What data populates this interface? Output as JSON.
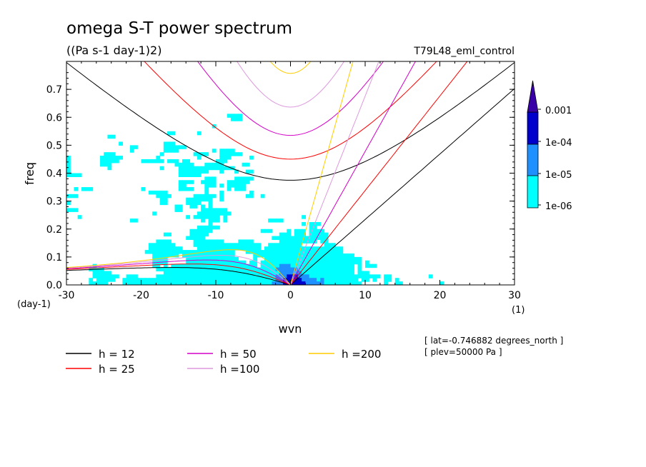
{
  "header": {
    "title": "omega S-T power spectrum",
    "units": "((Pa s-1 day-1)2)",
    "experiment": "T79L48_eml_control"
  },
  "chart_data": {
    "type": "heatmap",
    "title": "omega S-T power spectrum",
    "subtitle": "((Pa s-1 day-1)2)",
    "xlabel": "wvn",
    "ylabel": "freq",
    "x_units": "(1)",
    "y_units": "(day-1)",
    "xlim": [
      -30,
      30
    ],
    "ylim": [
      0,
      0.8
    ],
    "x_ticks": [
      "-30",
      "-20",
      "-10",
      "0",
      "10",
      "20",
      "30"
    ],
    "y_ticks": [
      "0.0",
      "0.1",
      "0.2",
      "0.3",
      "0.4",
      "0.5",
      "0.6",
      "0.7"
    ],
    "colorbar": {
      "labels": [
        "1e-06",
        "1e-05",
        "1e-04",
        "0.001"
      ],
      "levels": [
        1e-06,
        1e-05,
        0.0001,
        0.001
      ],
      "colors": [
        "#00ffff",
        "#1e90ff",
        "#0000cd",
        "#3a00a8"
      ]
    },
    "dispersion_curves": [
      {
        "label": "h = 12",
        "h": 12,
        "color": "#000000"
      },
      {
        "label": "h = 25",
        "h": 25,
        "color": "#ff0000"
      },
      {
        "label": "h = 50",
        "h": 50,
        "color": "#d400c8"
      },
      {
        "label": "h =100",
        "h": 100,
        "color": "#dd99dd"
      },
      {
        "label": "h =200",
        "h": 200,
        "color": "#ffcc00"
      }
    ],
    "annotations": [
      "[ lat=-0.746882 degrees_north ]",
      "[ plev=50000 Pa ]"
    ]
  }
}
